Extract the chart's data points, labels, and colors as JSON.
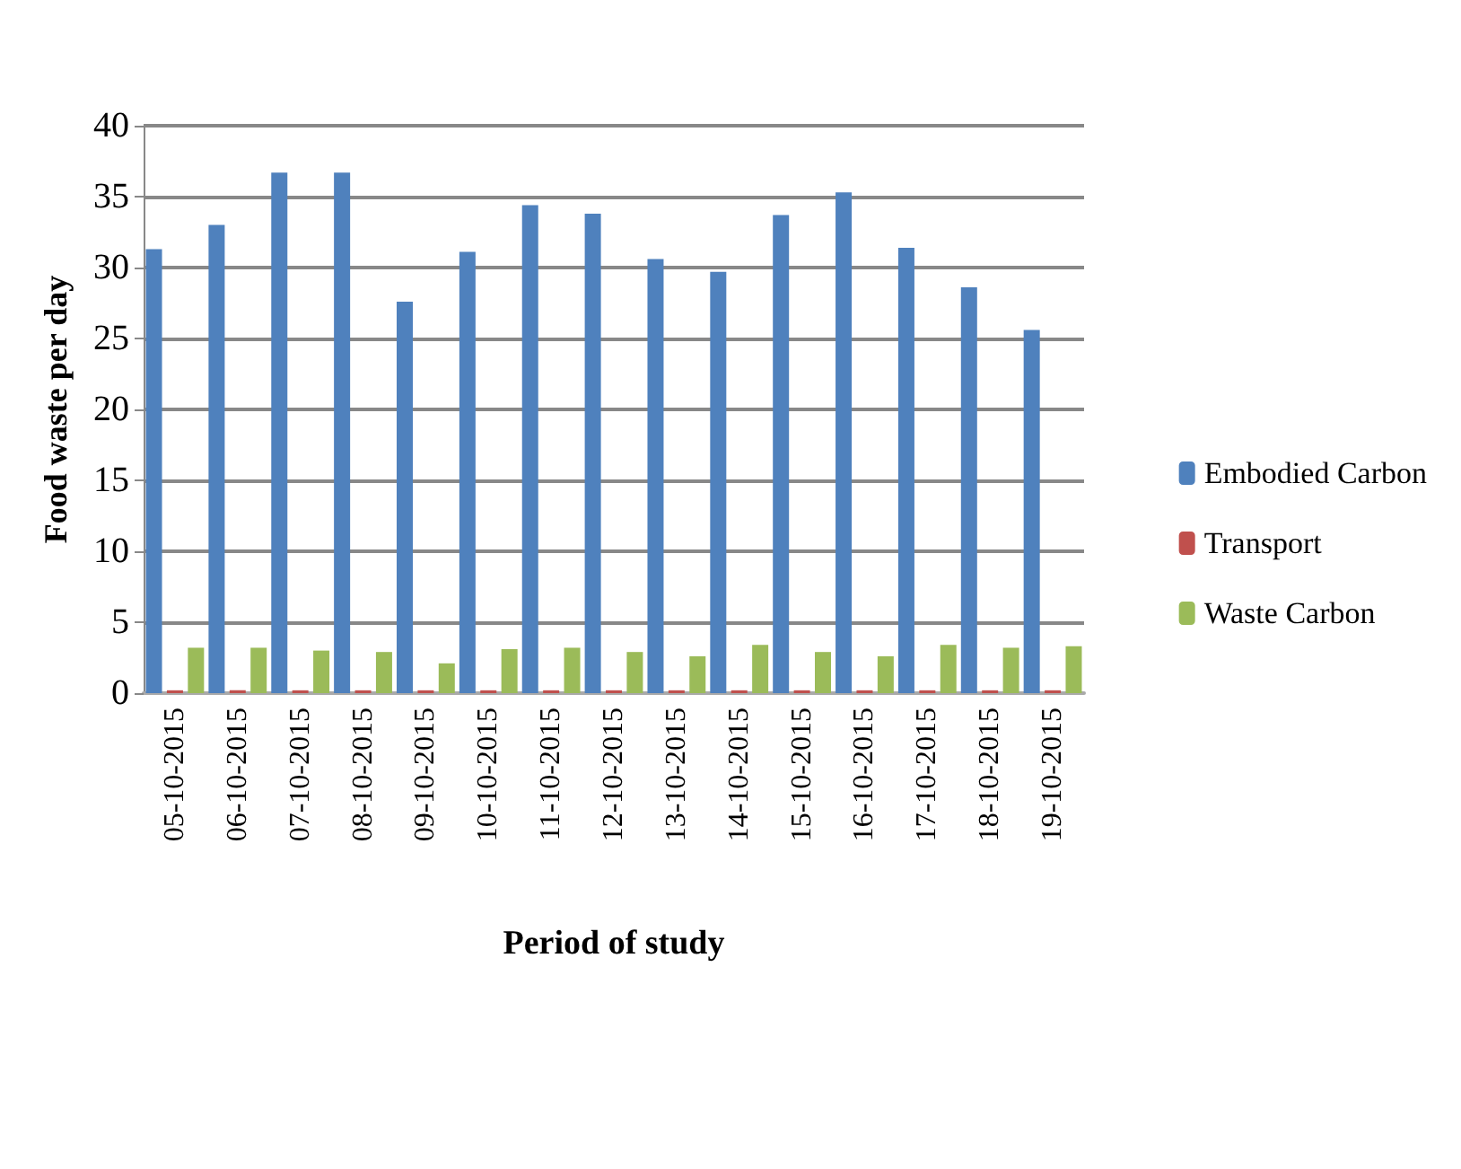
{
  "chart_data": {
    "type": "bar",
    "xlabel": "Period of study",
    "ylabel": "Food waste per day",
    "categories": [
      "05-10-2015",
      "06-10-2015",
      "07-10-2015",
      "08-10-2015",
      "09-10-2015",
      "10-10-2015",
      "11-10-2015",
      "12-10-2015",
      "13-10-2015",
      "14-10-2015",
      "15-10-2015",
      "16-10-2015",
      "17-10-2015",
      "18-10-2015",
      "19-10-2015"
    ],
    "series": [
      {
        "name": "Embodied Carbon",
        "color": "#4f81bd",
        "values": [
          31.3,
          33,
          36.7,
          36.7,
          27.6,
          31.1,
          34.4,
          33.8,
          30.6,
          29.7,
          33.7,
          35.3,
          31.4,
          28.6,
          25.6
        ]
      },
      {
        "name": "Transport",
        "color": "#c0504d",
        "values": [
          0.2,
          0.2,
          0.2,
          0.2,
          0.2,
          0.2,
          0.2,
          0.2,
          0.2,
          0.2,
          0.2,
          0.2,
          0.2,
          0.2,
          0.2
        ]
      },
      {
        "name": "Waste Carbon",
        "color": "#9bbb59",
        "values": [
          3.2,
          3.2,
          3.0,
          2.9,
          2.1,
          3.1,
          3.2,
          2.9,
          2.6,
          3.4,
          2.9,
          2.6,
          3.4,
          3.2,
          3.3
        ]
      }
    ],
    "ylim": [
      0,
      40
    ],
    "yticks": [
      0,
      5,
      10,
      15,
      20,
      25,
      30,
      35,
      40
    ],
    "grid": "y",
    "legend": "right"
  }
}
